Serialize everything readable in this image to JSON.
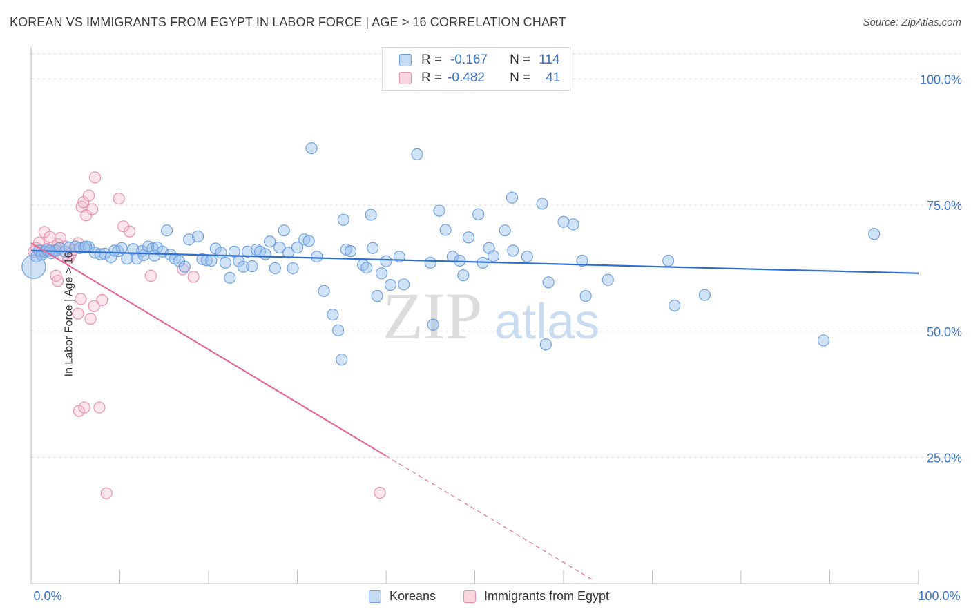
{
  "title": "KOREAN VS IMMIGRANTS FROM EGYPT IN LABOR FORCE | AGE > 16 CORRELATION CHART",
  "source": "Source: ZipAtlas.com",
  "watermark": {
    "zip": "ZIP",
    "atlas": "atlas"
  },
  "colors": {
    "blue": "#6fa0e0",
    "blue_fill": "rgba(150,190,235,0.45)",
    "blue_line": "#2e6fce",
    "pink": "#e891ae",
    "pink_fill": "rgba(245,180,200,0.35)",
    "pink_line": "#e06b98",
    "axis_text": "#3a72c8",
    "grid": "#dddddd"
  },
  "legend": {
    "row1": {
      "r_label": "R =",
      "r_value": "-0.167",
      "n_label": "N =",
      "n_value": "114"
    },
    "row2": {
      "r_label": "R =",
      "r_value": "-0.482",
      "n_label": "N =",
      "n_value": "41"
    }
  },
  "bottom_legend": {
    "koreans": "Koreans",
    "egypt": "Immigrants from Egypt"
  },
  "chart_data": {
    "type": "scatter",
    "title": "KOREAN VS IMMIGRANTS FROM EGYPT IN LABOR FORCE | AGE > 16 CORRELATION CHART",
    "xlabel": "",
    "ylabel": "In Labor Force | Age > 16",
    "xlim": [
      0,
      100
    ],
    "ylim": [
      0,
      105
    ],
    "x_tick_labels": {
      "min": "0.0%",
      "max": "100.0%"
    },
    "y_ticks": [
      25,
      50,
      75,
      100
    ],
    "y_tick_labels": [
      "25.0%",
      "50.0%",
      "75.0%",
      "100.0%"
    ],
    "series": [
      {
        "name": "Koreans",
        "r": -0.167,
        "n": 114,
        "trend": {
          "x0": 0,
          "y0": 66.0,
          "x1": 100,
          "y1": 61.5
        },
        "points": [
          [
            0.3,
            62.8
          ],
          [
            0.6,
            64.8
          ],
          [
            0.9,
            66.0
          ],
          [
            1.2,
            65.2
          ],
          [
            1.5,
            65.8
          ],
          [
            1.8,
            66.2
          ],
          [
            2.3,
            65.5
          ],
          [
            2.8,
            66.0
          ],
          [
            3.2,
            66.5
          ],
          [
            3.8,
            65.8
          ],
          [
            4.3,
            66.6
          ],
          [
            5.0,
            66.8
          ],
          [
            5.5,
            66.5
          ],
          [
            6.0,
            66.6
          ],
          [
            6.5,
            66.7
          ],
          [
            7.2,
            65.6
          ],
          [
            7.8,
            65.3
          ],
          [
            8.3,
            65.4
          ],
          [
            9.0,
            64.7
          ],
          [
            9.8,
            65.9
          ],
          [
            10.2,
            66.5
          ],
          [
            10.8,
            64.4
          ],
          [
            11.5,
            66.3
          ],
          [
            11.9,
            64.4
          ],
          [
            12.5,
            65.9
          ],
          [
            12.7,
            65.1
          ],
          [
            13.2,
            66.8
          ],
          [
            13.7,
            66.4
          ],
          [
            14.2,
            66.6
          ],
          [
            14.8,
            65.8
          ],
          [
            15.3,
            70.0
          ],
          [
            15.7,
            65.2
          ],
          [
            16.2,
            64.4
          ],
          [
            16.7,
            63.9
          ],
          [
            17.3,
            62.8
          ],
          [
            17.8,
            68.2
          ],
          [
            18.8,
            68.8
          ],
          [
            19.3,
            64.3
          ],
          [
            19.8,
            64.1
          ],
          [
            20.3,
            64.0
          ],
          [
            20.8,
            66.4
          ],
          [
            21.4,
            65.6
          ],
          [
            21.9,
            63.6
          ],
          [
            22.4,
            60.6
          ],
          [
            22.9,
            65.8
          ],
          [
            23.4,
            63.9
          ],
          [
            23.9,
            62.8
          ],
          [
            24.4,
            65.8
          ],
          [
            24.9,
            62.9
          ],
          [
            25.4,
            66.2
          ],
          [
            25.8,
            65.8
          ],
          [
            26.4,
            65.3
          ],
          [
            26.9,
            67.8
          ],
          [
            27.5,
            62.5
          ],
          [
            28.0,
            66.6
          ],
          [
            28.5,
            70.0
          ],
          [
            29.0,
            65.6
          ],
          [
            29.5,
            62.5
          ],
          [
            30.0,
            66.6
          ],
          [
            30.8,
            68.2
          ],
          [
            31.3,
            67.9
          ],
          [
            31.6,
            86.3
          ],
          [
            32.2,
            64.8
          ],
          [
            33.0,
            58.0
          ],
          [
            34.0,
            53.3
          ],
          [
            34.6,
            50.2
          ],
          [
            35.5,
            66.2
          ],
          [
            36.0,
            65.9
          ],
          [
            35.0,
            44.4
          ],
          [
            35.2,
            72.1
          ],
          [
            37.4,
            63.2
          ],
          [
            37.8,
            62.6
          ],
          [
            38.3,
            73.1
          ],
          [
            38.5,
            66.5
          ],
          [
            39.0,
            57.0
          ],
          [
            39.5,
            61.5
          ],
          [
            40.0,
            63.9
          ],
          [
            40.5,
            59.2
          ],
          [
            41.5,
            64.8
          ],
          [
            42.0,
            59.3
          ],
          [
            43.5,
            85.1
          ],
          [
            45.0,
            63.6
          ],
          [
            45.3,
            51.3
          ],
          [
            46.0,
            73.9
          ],
          [
            46.7,
            70.1
          ],
          [
            47.5,
            64.8
          ],
          [
            48.3,
            64.0
          ],
          [
            48.7,
            61.1
          ],
          [
            49.3,
            68.6
          ],
          [
            50.4,
            73.2
          ],
          [
            50.9,
            63.6
          ],
          [
            51.6,
            66.5
          ],
          [
            52.1,
            64.9
          ],
          [
            53.4,
            70.0
          ],
          [
            54.2,
            76.5
          ],
          [
            54.3,
            66.0
          ],
          [
            55.9,
            64.8
          ],
          [
            57.6,
            75.3
          ],
          [
            58.3,
            59.7
          ],
          [
            60.0,
            71.7
          ],
          [
            61.1,
            71.2
          ],
          [
            62.1,
            64.0
          ],
          [
            62.5,
            57.0
          ],
          [
            65.0,
            60.2
          ],
          [
            71.8,
            64.0
          ],
          [
            72.5,
            55.1
          ],
          [
            75.9,
            57.2
          ],
          [
            58.0,
            47.4
          ],
          [
            89.3,
            48.2
          ],
          [
            95.0,
            69.3
          ],
          [
            2.1,
            66.0
          ],
          [
            6.2,
            66.8
          ],
          [
            9.4,
            66.0
          ],
          [
            13.9,
            65.0
          ]
        ]
      },
      {
        "name": "Immigrants from Egypt",
        "r": -0.482,
        "n": 41,
        "trend_solid": {
          "x0": 0,
          "y0": 67.5,
          "x1": 40.0,
          "y1": 25.3
        },
        "trend_dashed": {
          "x0": 40.0,
          "y0": 25.3,
          "x1": 63.5,
          "y1": 0.5
        },
        "points": [
          [
            0.3,
            65.8
          ],
          [
            0.6,
            66.5
          ],
          [
            0.9,
            67.6
          ],
          [
            1.2,
            66.0
          ],
          [
            1.5,
            69.7
          ],
          [
            1.8,
            66.3
          ],
          [
            2.1,
            68.7
          ],
          [
            2.4,
            66.6
          ],
          [
            2.7,
            66.1
          ],
          [
            3.0,
            67.3
          ],
          [
            3.3,
            68.5
          ],
          [
            3.6,
            65.0
          ],
          [
            3.9,
            66.8
          ],
          [
            4.2,
            64.4
          ],
          [
            4.5,
            65.5
          ],
          [
            2.8,
            61.0
          ],
          [
            3.0,
            60.0
          ],
          [
            5.3,
            67.5
          ],
          [
            5.7,
            74.7
          ],
          [
            5.9,
            75.6
          ],
          [
            6.2,
            73.0
          ],
          [
            6.5,
            76.9
          ],
          [
            6.9,
            74.2
          ],
          [
            7.2,
            80.5
          ],
          [
            8.0,
            56.2
          ],
          [
            9.9,
            76.3
          ],
          [
            10.4,
            70.8
          ],
          [
            11.1,
            69.8
          ],
          [
            13.5,
            61.0
          ],
          [
            17.1,
            62.3
          ],
          [
            18.3,
            60.8
          ],
          [
            5.3,
            53.5
          ],
          [
            5.6,
            56.4
          ],
          [
            6.7,
            52.5
          ],
          [
            7.1,
            55.0
          ],
          [
            5.4,
            34.2
          ],
          [
            6.0,
            34.9
          ],
          [
            7.7,
            34.9
          ],
          [
            8.5,
            17.9
          ],
          [
            39.3,
            18.0
          ],
          [
            4.8,
            66.2
          ]
        ]
      }
    ]
  }
}
